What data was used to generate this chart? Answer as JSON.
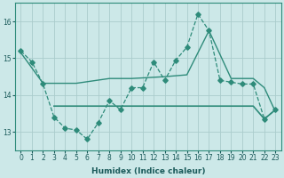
{
  "line1_x": [
    0,
    1,
    2,
    3,
    4,
    5,
    6,
    7,
    8,
    9,
    10,
    11,
    12,
    13,
    14,
    15,
    16,
    17,
    18,
    19,
    20,
    21,
    22,
    23
  ],
  "line1_y": [
    15.2,
    14.9,
    14.3,
    13.4,
    13.1,
    13.05,
    12.8,
    13.25,
    13.85,
    13.6,
    14.2,
    14.2,
    14.9,
    14.4,
    14.95,
    15.3,
    16.2,
    15.75,
    14.4,
    14.35,
    14.3,
    14.3,
    13.35,
    13.6
  ],
  "line2_x": [
    0,
    2,
    5,
    8,
    10,
    13,
    15,
    17,
    19,
    21,
    22,
    23
  ],
  "line2_y": [
    15.15,
    14.32,
    14.32,
    14.45,
    14.45,
    14.5,
    14.55,
    15.75,
    14.45,
    14.45,
    14.2,
    13.55
  ],
  "line3_x": [
    3,
    5,
    21,
    22,
    23
  ],
  "line3_y": [
    13.7,
    13.7,
    13.7,
    13.35,
    13.6
  ],
  "color": "#2e8b7a",
  "bg_color": "#cce8e8",
  "grid_color": "#aacccc",
  "xlabel": "Humidex (Indice chaleur)",
  "ylim": [
    12.5,
    16.5
  ],
  "xlim": [
    -0.5,
    23.5
  ],
  "yticks": [
    13,
    14,
    15,
    16
  ],
  "xticks": [
    0,
    1,
    2,
    3,
    4,
    5,
    6,
    7,
    8,
    9,
    10,
    11,
    12,
    13,
    14,
    15,
    16,
    17,
    18,
    19,
    20,
    21,
    22,
    23
  ]
}
